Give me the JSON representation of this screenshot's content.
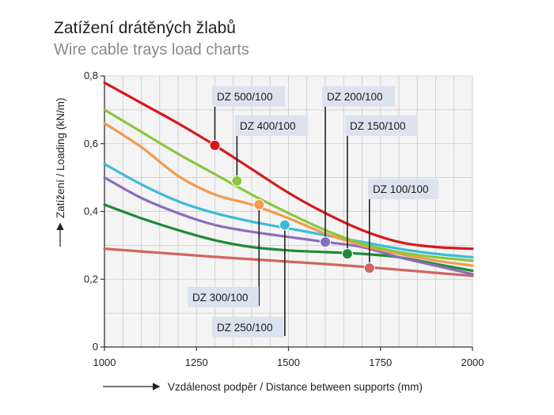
{
  "title": "Zatížení drátěných žlabů",
  "subtitle": "Wire cable trays load charts",
  "chart_data": {
    "type": "line",
    "xlabel": "Vzdálenost podpěr / Distance between supports (mm)",
    "ylabel": "Zatížení / Loading (kN/m)",
    "xlim": [
      1000,
      2000
    ],
    "ylim": [
      0,
      0.8
    ],
    "xticks": [
      "1000",
      "1250",
      "1500",
      "1750",
      "2000"
    ],
    "yticks": [
      "0",
      "0,2",
      "0,4",
      "0,6",
      "0,8"
    ],
    "grid": true,
    "series": [
      {
        "name": "DZ 500/100",
        "color": "#d7191c",
        "x": [
          1000,
          1100,
          1200,
          1300,
          1400,
          1500,
          1600,
          1700,
          1800,
          1900,
          2000
        ],
        "y": [
          0.78,
          0.72,
          0.66,
          0.595,
          0.525,
          0.455,
          0.395,
          0.345,
          0.31,
          0.295,
          0.29
        ],
        "marker": [
          1300,
          0.595
        ]
      },
      {
        "name": "DZ 400/100",
        "color": "#8cc63e",
        "x": [
          1000,
          1100,
          1200,
          1300,
          1400,
          1500,
          1600,
          1700,
          1800,
          1900,
          2000
        ],
        "y": [
          0.7,
          0.635,
          0.57,
          0.51,
          0.45,
          0.395,
          0.345,
          0.305,
          0.28,
          0.265,
          0.255
        ],
        "marker": [
          1360,
          0.49
        ]
      },
      {
        "name": "DZ 300/100",
        "color": "#f39a4e",
        "x": [
          1000,
          1100,
          1200,
          1300,
          1400,
          1500,
          1600,
          1700,
          1800,
          1900,
          2000
        ],
        "y": [
          0.66,
          0.59,
          0.505,
          0.45,
          0.42,
          0.38,
          0.335,
          0.3,
          0.275,
          0.255,
          0.24
        ],
        "marker": [
          1420,
          0.42
        ]
      },
      {
        "name": "DZ 250/100",
        "color": "#3bbcd6",
        "x": [
          1000,
          1100,
          1200,
          1300,
          1400,
          1500,
          1600,
          1700,
          1800,
          1900,
          2000
        ],
        "y": [
          0.54,
          0.48,
          0.43,
          0.395,
          0.37,
          0.35,
          0.33,
          0.31,
          0.29,
          0.275,
          0.265
        ],
        "marker": [
          1490,
          0.36
        ]
      },
      {
        "name": "DZ 200/100",
        "color": "#8b6dbd",
        "x": [
          1000,
          1100,
          1200,
          1300,
          1400,
          1500,
          1600,
          1700,
          1800,
          1900,
          2000
        ],
        "y": [
          0.5,
          0.44,
          0.395,
          0.36,
          0.34,
          0.325,
          0.31,
          0.295,
          0.265,
          0.24,
          0.215
        ],
        "marker": [
          1600,
          0.31
        ]
      },
      {
        "name": "DZ 150/100",
        "color": "#1e8a3a",
        "x": [
          1000,
          1100,
          1200,
          1300,
          1400,
          1500,
          1600,
          1700,
          1800,
          1900,
          2000
        ],
        "y": [
          0.42,
          0.38,
          0.345,
          0.315,
          0.295,
          0.285,
          0.28,
          0.275,
          0.265,
          0.245,
          0.225
        ],
        "marker": [
          1660,
          0.275
        ]
      },
      {
        "name": "DZ 100/100",
        "color": "#d0645f",
        "x": [
          1000,
          1100,
          1200,
          1300,
          1400,
          1500,
          1600,
          1700,
          1800,
          1900,
          2000
        ],
        "y": [
          0.29,
          0.282,
          0.274,
          0.266,
          0.259,
          0.252,
          0.245,
          0.237,
          0.228,
          0.219,
          0.21
        ],
        "marker": [
          1720,
          0.233
        ]
      }
    ]
  }
}
